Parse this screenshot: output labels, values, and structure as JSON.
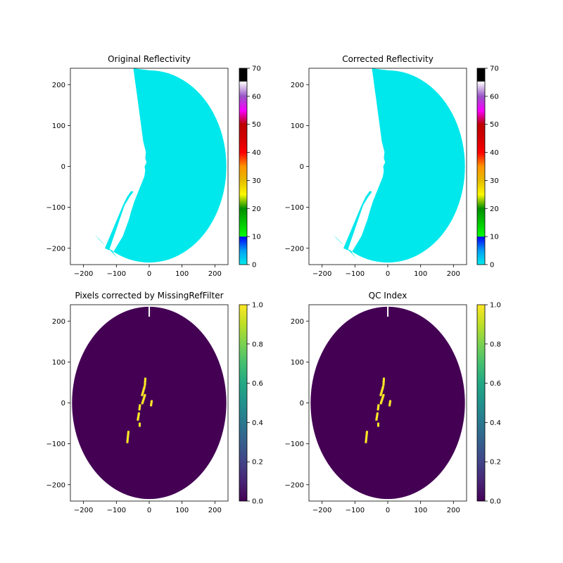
{
  "chart_data": [
    {
      "type": "heatmap",
      "title": "Original Reflectivity",
      "xlim": [
        -240,
        240
      ],
      "ylim": [
        -240,
        240
      ],
      "xticks": [
        -200,
        -100,
        0,
        100,
        200
      ],
      "yticks": [
        -200,
        -100,
        0,
        100,
        200
      ],
      "data_color": "#00e8ec",
      "mask_color": "#ffffff",
      "field": "reflectivity",
      "colorbar": {
        "range": [
          0,
          70
        ],
        "ticks": [
          0,
          10,
          20,
          30,
          40,
          50,
          60,
          70
        ],
        "colormap": "nws-reflectivity"
      },
      "valid_region": {
        "description_free": true,
        "boundary_x_at_y": [
          [
            230,
            -50
          ],
          [
            150,
            -27
          ],
          [
            100,
            -15
          ],
          [
            50,
            -10
          ],
          [
            20,
            -13
          ],
          [
            0,
            -13
          ],
          [
            -20,
            -18
          ],
          [
            -50,
            -40
          ],
          [
            -80,
            -60
          ],
          [
            -100,
            -75
          ],
          [
            -150,
            -103
          ],
          [
            -200,
            -125
          ],
          [
            -235,
            -125
          ]
        ],
        "outer_radius": 235
      }
    },
    {
      "type": "heatmap",
      "title": "Corrected Reflectivity",
      "xlim": [
        -240,
        240
      ],
      "ylim": [
        -240,
        240
      ],
      "xticks": [
        -200,
        -100,
        0,
        100,
        200
      ],
      "yticks": [
        -200,
        -100,
        0,
        100,
        200
      ],
      "data_color": "#00e8ec",
      "mask_color": "#ffffff",
      "field": "reflectivity",
      "colorbar": {
        "range": [
          0,
          70
        ],
        "ticks": [
          0,
          10,
          20,
          30,
          40,
          50,
          60,
          70
        ],
        "colormap": "nws-reflectivity"
      }
    },
    {
      "type": "heatmap",
      "title": "Pixels corrected by MissingRefFilter",
      "xlim": [
        -240,
        240
      ],
      "ylim": [
        -240,
        240
      ],
      "xticks": [
        -200,
        -100,
        0,
        100,
        200
      ],
      "yticks": [
        -200,
        -100,
        0,
        100,
        200
      ],
      "background_value": 0,
      "flag_value": 1,
      "outer_radius": 235,
      "flag_segments": [
        {
          "x": [
            -28,
            -8
          ],
          "y": [
            0,
            20
          ]
        },
        {
          "x": [
            -28,
            -10
          ],
          "y": [
            20,
            40
          ]
        },
        {
          "x": [
            -15,
            -12
          ],
          "y": [
            45,
            60
          ]
        },
        {
          "x": [
            -32,
            -28
          ],
          "y": [
            -15,
            -5
          ]
        },
        {
          "x": [
            -38,
            -30
          ],
          "y": [
            -40,
            -25
          ]
        },
        {
          "x": [
            -70,
            -62
          ],
          "y": [
            -95,
            -70
          ]
        },
        {
          "x": [
            -30,
            -30
          ],
          "y": [
            -55,
            -50
          ]
        },
        {
          "x": [
            3,
            8
          ],
          "y": [
            -5,
            5
          ]
        }
      ],
      "colorbar": {
        "range": [
          0,
          1
        ],
        "ticks": [
          0.0,
          0.2,
          0.4,
          0.6,
          0.8,
          1.0
        ],
        "tick_labels": [
          "0.0",
          "0.2",
          "0.4",
          "0.6",
          "0.8",
          "1.0"
        ],
        "colormap": "viridis"
      }
    },
    {
      "type": "heatmap",
      "title": "QC Index",
      "xlim": [
        -240,
        240
      ],
      "ylim": [
        -240,
        240
      ],
      "xticks": [
        -200,
        -100,
        0,
        100,
        200
      ],
      "yticks": [
        -200,
        -100,
        0,
        100,
        200
      ],
      "background_value": 0,
      "flag_value": 1,
      "outer_radius": 235,
      "colorbar": {
        "range": [
          0,
          1
        ],
        "ticks": [
          0.0,
          0.2,
          0.4,
          0.6,
          0.8,
          1.0
        ],
        "tick_labels": [
          "0.0",
          "0.2",
          "0.4",
          "0.6",
          "0.8",
          "1.0"
        ],
        "colormap": "viridis"
      }
    }
  ]
}
